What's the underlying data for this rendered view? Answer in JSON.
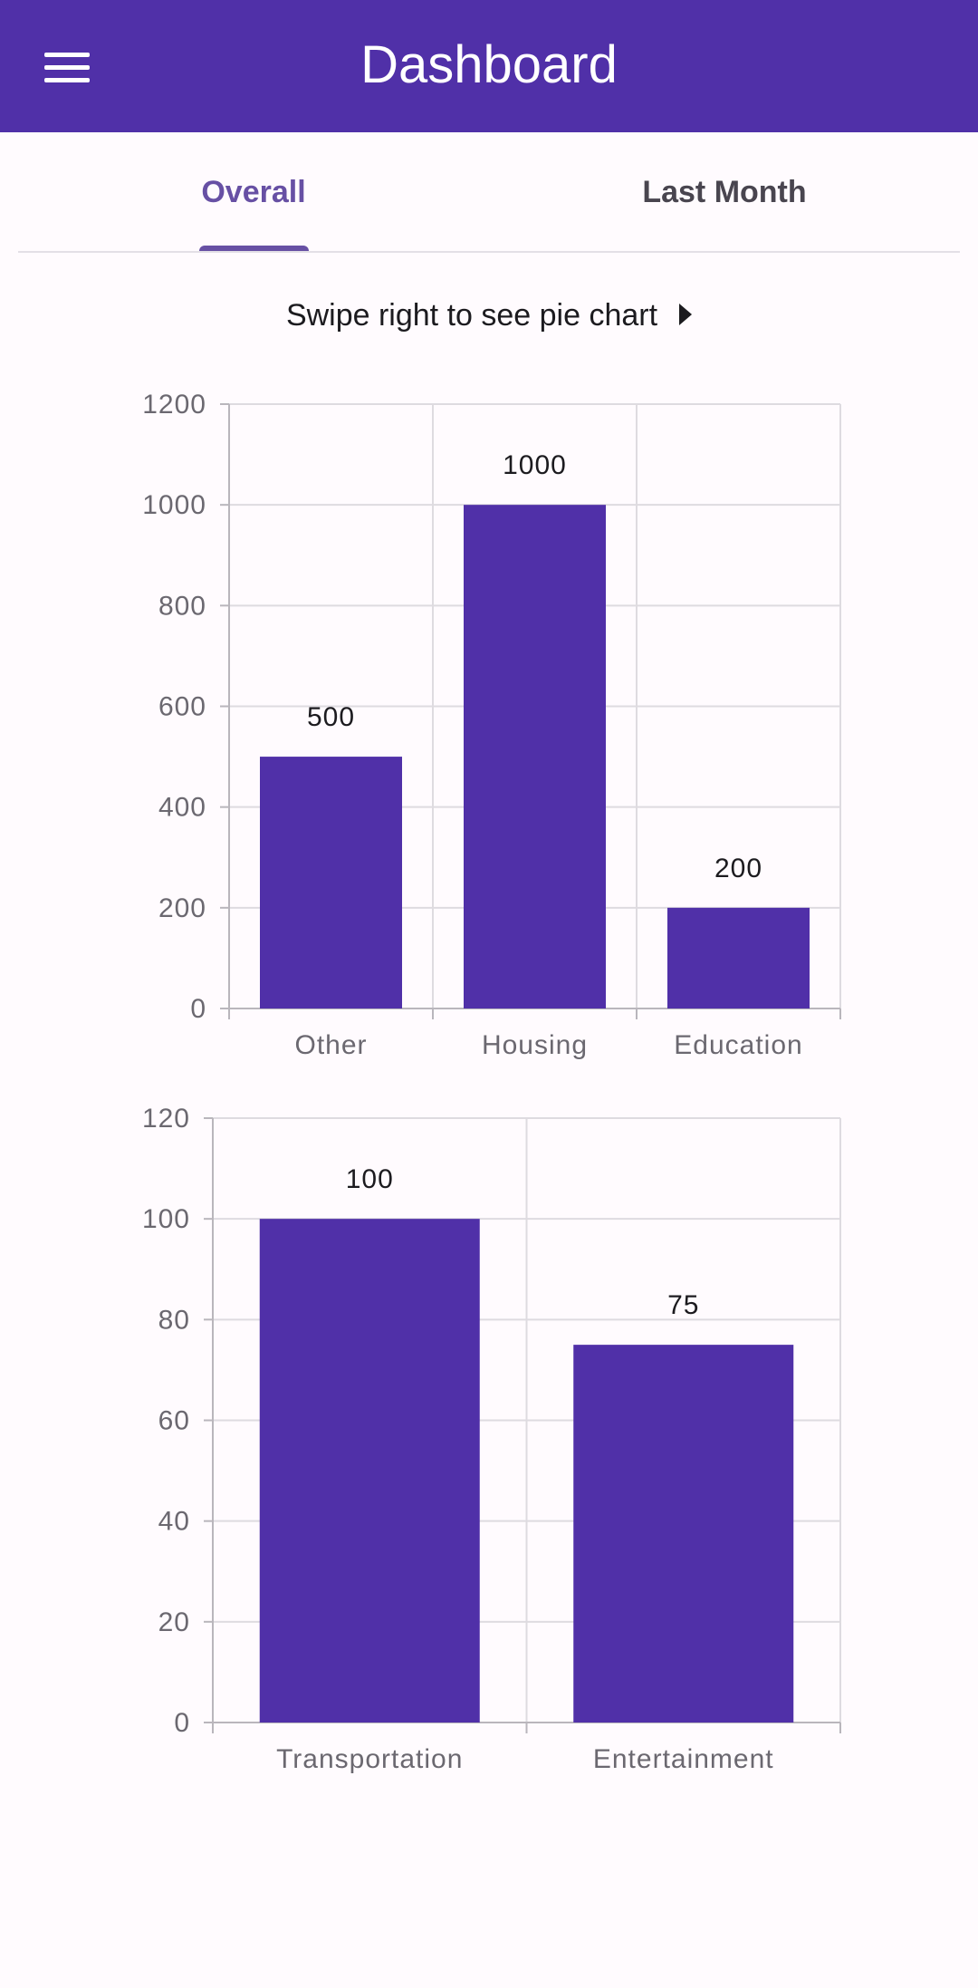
{
  "app": {
    "title": "Dashboard"
  },
  "tabs": [
    {
      "label": "Overall",
      "selected": true
    },
    {
      "label": "Last Month",
      "selected": false
    }
  ],
  "hint": {
    "text": "Swipe right to see pie chart"
  },
  "colors": {
    "primary": "#5030a8",
    "tab_active": "#6750a4",
    "background": "#fffbfe"
  },
  "chart_data": [
    {
      "type": "bar",
      "categories": [
        "Other",
        "Housing",
        "Education"
      ],
      "values": [
        500,
        1000,
        200
      ],
      "title": "",
      "xlabel": "",
      "ylabel": "",
      "ylim": [
        0,
        1200
      ],
      "yticks": [
        0,
        200,
        400,
        600,
        800,
        1000,
        1200
      ],
      "grid": true,
      "data_labels": true,
      "color": "#5030a8"
    },
    {
      "type": "bar",
      "categories": [
        "Transportation",
        "Entertainment"
      ],
      "values": [
        100,
        75
      ],
      "title": "",
      "xlabel": "",
      "ylabel": "",
      "ylim": [
        0,
        120
      ],
      "yticks": [
        0,
        20,
        40,
        60,
        80,
        100,
        120
      ],
      "grid": true,
      "data_labels": true,
      "color": "#5030a8"
    }
  ]
}
